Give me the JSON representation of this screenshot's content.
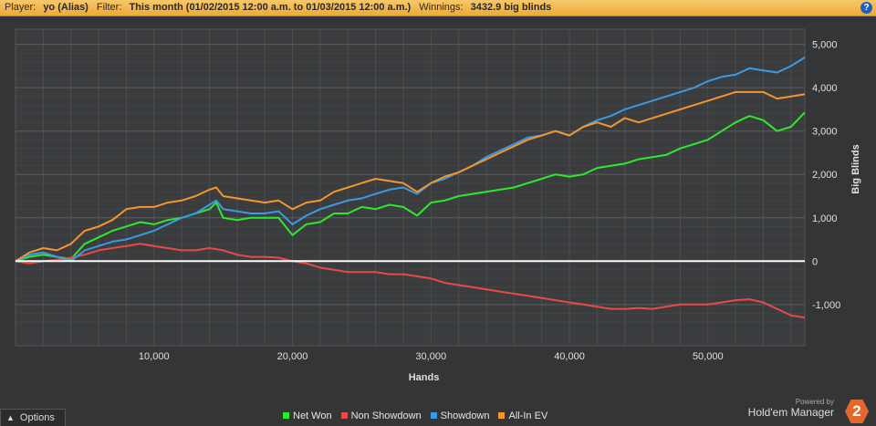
{
  "header": {
    "player_label": "Player:",
    "player_value": "yo (Alias)",
    "filter_label": "Filter:",
    "filter_value": "This month (01/02/2015 12:00 a.m. to 01/03/2015 12:00 a.m.)",
    "winnings_label": "Winnings:",
    "winnings_value": "3432.9 big blinds",
    "help_icon_glyph": "?"
  },
  "footer": {
    "options_label": "Options",
    "powered_by": "Powered by",
    "brand_name": "Hold'em Manager",
    "brand_logo": "2"
  },
  "chart_data": {
    "type": "line",
    "xlabel": "Hands",
    "ylabel": "Big Blinds",
    "xlim": [
      0,
      57000
    ],
    "ylim": [
      -1950,
      5350
    ],
    "x_ticks": [
      10000,
      20000,
      30000,
      40000,
      50000
    ],
    "x_tick_labels": [
      "10,000",
      "20,000",
      "30,000",
      "40,000",
      "50,000"
    ],
    "y_ticks": [
      -1000,
      0,
      1000,
      2000,
      3000,
      4000,
      5000
    ],
    "y_tick_labels": [
      "-1,000",
      "0",
      "1,000",
      "2,000",
      "3,000",
      "4,000",
      "5,000"
    ],
    "grid": true,
    "legend_position": "bottom",
    "colors": {
      "background": "#3a3c3e",
      "grid": "#4c4e50",
      "zero_line": "#ffffff",
      "axis_text": "#e0e0e0"
    },
    "series": [
      {
        "name": "Net Won",
        "color": "#2ee82e",
        "x": [
          0,
          1000,
          2000,
          3000,
          4000,
          5000,
          6000,
          7000,
          8000,
          9000,
          10000,
          11000,
          12000,
          13000,
          14000,
          14500,
          15000,
          16000,
          17000,
          18000,
          19000,
          20000,
          21000,
          22000,
          23000,
          24000,
          25000,
          26000,
          27000,
          28000,
          29000,
          30000,
          31000,
          32000,
          33000,
          34000,
          35000,
          36000,
          37000,
          38000,
          39000,
          40000,
          41000,
          42000,
          43000,
          44000,
          45000,
          46000,
          47000,
          48000,
          49000,
          50000,
          51000,
          52000,
          53000,
          54000,
          55000,
          56000,
          57000
        ],
        "y": [
          0,
          100,
          150,
          100,
          50,
          400,
          550,
          700,
          800,
          900,
          850,
          950,
          1000,
          1100,
          1200,
          1350,
          1000,
          950,
          1000,
          1000,
          1000,
          600,
          850,
          900,
          1100,
          1100,
          1250,
          1200,
          1300,
          1250,
          1050,
          1350,
          1400,
          1500,
          1550,
          1600,
          1650,
          1700,
          1800,
          1900,
          2000,
          1950,
          2000,
          2150,
          2200,
          2250,
          2350,
          2400,
          2450,
          2600,
          2700,
          2800,
          3000,
          3200,
          3350,
          3250,
          3000,
          3100,
          3430
        ]
      },
      {
        "name": "Non Showdown",
        "color": "#e84a4a",
        "x": [
          0,
          1000,
          2000,
          3000,
          4000,
          5000,
          6000,
          7000,
          8000,
          9000,
          10000,
          11000,
          12000,
          13000,
          14000,
          15000,
          16000,
          17000,
          18000,
          19000,
          20000,
          21000,
          22000,
          23000,
          24000,
          25000,
          26000,
          27000,
          28000,
          29000,
          30000,
          31000,
          32000,
          33000,
          34000,
          35000,
          36000,
          37000,
          38000,
          39000,
          40000,
          41000,
          42000,
          43000,
          44000,
          45000,
          46000,
          47000,
          48000,
          49000,
          50000,
          51000,
          52000,
          53000,
          54000,
          55000,
          56000,
          57000
        ],
        "y": [
          0,
          -50,
          0,
          30,
          80,
          150,
          250,
          300,
          350,
          400,
          350,
          300,
          250,
          250,
          300,
          250,
          150,
          100,
          100,
          80,
          0,
          -50,
          -150,
          -200,
          -250,
          -250,
          -250,
          -300,
          -300,
          -350,
          -400,
          -500,
          -550,
          -600,
          -650,
          -700,
          -750,
          -800,
          -850,
          -900,
          -950,
          -1000,
          -1050,
          -1100,
          -1100,
          -1080,
          -1100,
          -1050,
          -1000,
          -1000,
          -1000,
          -950,
          -900,
          -880,
          -950,
          -1100,
          -1250,
          -1300
        ]
      },
      {
        "name": "Showdown",
        "color": "#3a9ae6",
        "x": [
          0,
          1000,
          2000,
          3000,
          4000,
          5000,
          6000,
          7000,
          8000,
          9000,
          10000,
          11000,
          12000,
          13000,
          14000,
          14500,
          15000,
          16000,
          17000,
          18000,
          19000,
          20000,
          21000,
          22000,
          23000,
          24000,
          25000,
          26000,
          27000,
          28000,
          29000,
          30000,
          31000,
          32000,
          33000,
          34000,
          35000,
          36000,
          37000,
          38000,
          39000,
          40000,
          41000,
          42000,
          43000,
          44000,
          45000,
          46000,
          47000,
          48000,
          49000,
          50000,
          51000,
          52000,
          53000,
          54000,
          55000,
          56000,
          57000
        ],
        "y": [
          0,
          150,
          200,
          100,
          0,
          250,
          350,
          450,
          500,
          600,
          700,
          850,
          1000,
          1100,
          1300,
          1400,
          1200,
          1150,
          1100,
          1100,
          1150,
          850,
          1050,
          1200,
          1300,
          1400,
          1450,
          1550,
          1650,
          1700,
          1550,
          1800,
          1900,
          2050,
          2200,
          2400,
          2550,
          2700,
          2850,
          2900,
          3000,
          2900,
          3100,
          3250,
          3350,
          3500,
          3600,
          3700,
          3800,
          3900,
          4000,
          4150,
          4250,
          4300,
          4450,
          4400,
          4350,
          4500,
          4700
        ]
      },
      {
        "name": "All-In EV",
        "color": "#f5952e",
        "x": [
          0,
          1000,
          2000,
          3000,
          4000,
          5000,
          6000,
          7000,
          8000,
          9000,
          10000,
          11000,
          12000,
          13000,
          14000,
          14500,
          15000,
          16000,
          17000,
          18000,
          19000,
          20000,
          21000,
          22000,
          23000,
          24000,
          25000,
          26000,
          27000,
          28000,
          29000,
          30000,
          31000,
          32000,
          33000,
          34000,
          35000,
          36000,
          37000,
          38000,
          39000,
          40000,
          41000,
          42000,
          43000,
          44000,
          45000,
          46000,
          47000,
          48000,
          49000,
          50000,
          51000,
          52000,
          53000,
          54000,
          55000,
          56000,
          57000
        ],
        "y": [
          0,
          200,
          300,
          250,
          400,
          700,
          800,
          950,
          1200,
          1250,
          1250,
          1350,
          1400,
          1500,
          1650,
          1700,
          1500,
          1450,
          1400,
          1350,
          1400,
          1200,
          1350,
          1400,
          1600,
          1700,
          1800,
          1900,
          1850,
          1800,
          1600,
          1800,
          1950,
          2050,
          2200,
          2350,
          2500,
          2650,
          2800,
          2900,
          3000,
          2900,
          3100,
          3200,
          3100,
          3300,
          3200,
          3300,
          3400,
          3500,
          3600,
          3700,
          3800,
          3900,
          3900,
          3900,
          3750,
          3800,
          3850
        ]
      }
    ]
  }
}
